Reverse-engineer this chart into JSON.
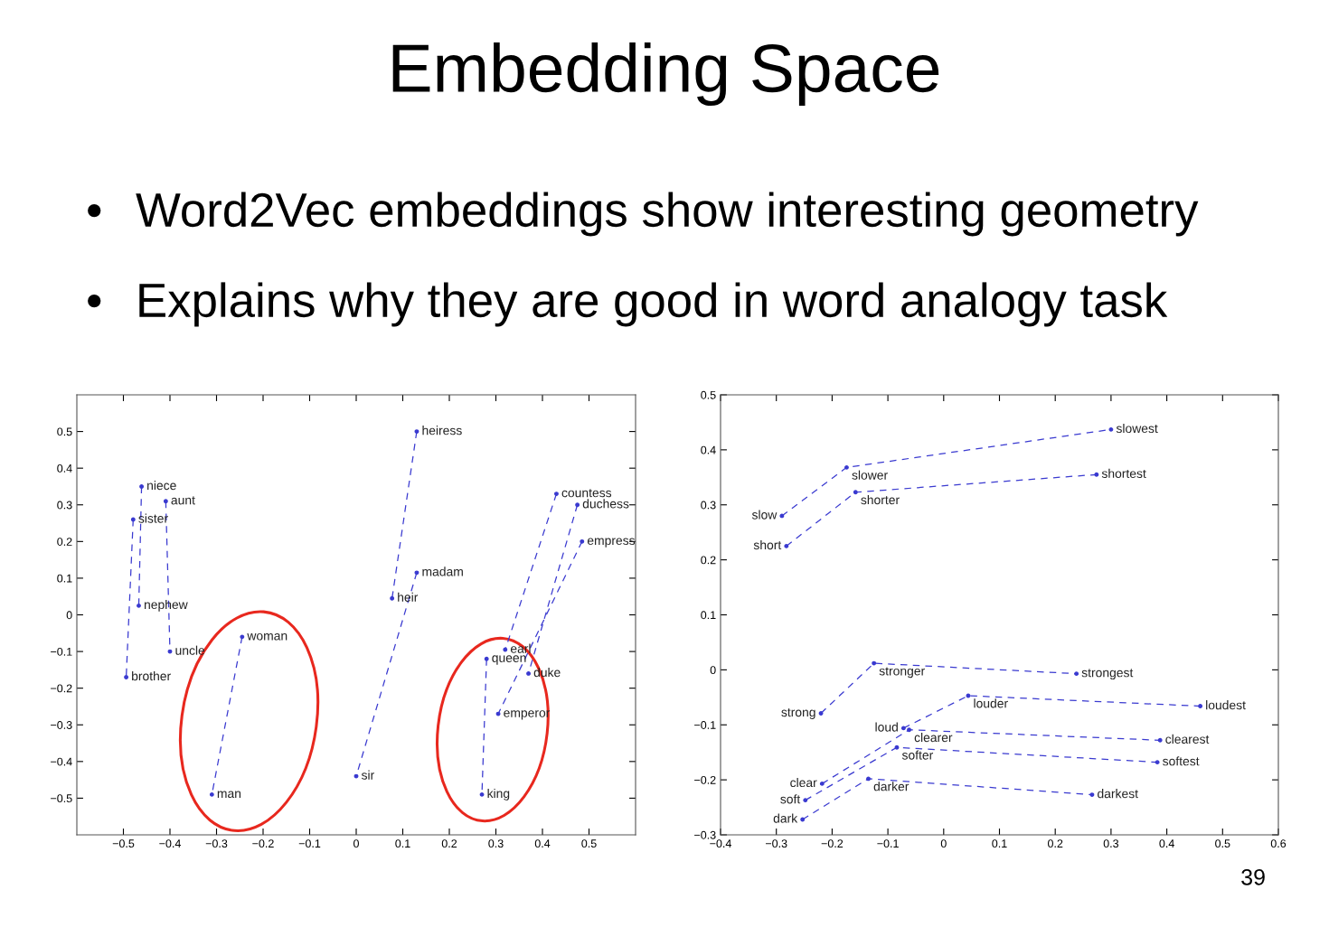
{
  "chart_data": [
    {
      "type": "line",
      "title": "Embedding Space",
      "marker": "circle",
      "line_style": "dashed",
      "grid": false,
      "annotations": [
        "• Word2Vec embeddings show interesting geometry",
        "• Explains why they are good in word analogy task"
      ],
      "xlim": [
        -0.6,
        0.6
      ],
      "ylim": [
        -0.6,
        0.6
      ],
      "xticks": [
        {
          "value": -0.5,
          "label": "−0.5"
        },
        {
          "value": -0.4,
          "label": "−0.4"
        },
        {
          "value": -0.3,
          "label": "−0.3"
        },
        {
          "value": -0.2,
          "label": "−0.2"
        },
        {
          "value": -0.1,
          "label": "−0.1"
        },
        0,
        0.1,
        0.2,
        0.3,
        0.4,
        0.5
      ],
      "yticks": [
        {
          "value": -0.5,
          "label": "−0.5"
        },
        {
          "value": -0.4,
          "label": "−0.4"
        },
        {
          "value": -0.3,
          "label": "−0.3"
        },
        {
          "value": -0.2,
          "label": "−0.2"
        },
        {
          "value": -0.1,
          "label": "−0.1"
        },
        0,
        0.1,
        0.2,
        0.3,
        0.4,
        0.5
      ],
      "series": [
        {
          "color": "#3a3ad0",
          "x": [
            -0.461,
            -0.467
          ],
          "values": [
            0.35,
            0.025
          ],
          "value_labels": [
            "niece",
            "nephew"
          ]
        },
        {
          "color": "#3a3ad0",
          "x": [
            -0.409,
            -0.4
          ],
          "values": [
            0.31,
            -0.1
          ],
          "value_labels": [
            "aunt",
            "uncle"
          ]
        },
        {
          "color": "#3a3ad0",
          "x": [
            -0.479,
            -0.494
          ],
          "values": [
            0.26,
            -0.17
          ],
          "value_labels": [
            "sister",
            "brother"
          ]
        },
        {
          "color": "#3a3ad0",
          "x": [
            -0.245,
            -0.31
          ],
          "values": [
            -0.06,
            -0.49
          ],
          "value_labels": [
            "woman",
            "man"
          ]
        },
        {
          "color": "#3a3ad0",
          "x": [
            0.13,
            0.077
          ],
          "values": [
            0.5,
            0.045
          ],
          "value_labels": [
            "heiress",
            "heir"
          ]
        },
        {
          "color": "#3a3ad0",
          "x": [
            0.13,
            0.0
          ],
          "values": [
            0.115,
            -0.44
          ],
          "value_labels": [
            "madam",
            "sir"
          ]
        },
        {
          "color": "#3a3ad0",
          "x": [
            0.43,
            0.32
          ],
          "values": [
            0.33,
            -0.095
          ],
          "value_labels": [
            "countess",
            "earl"
          ]
        },
        {
          "color": "#3a3ad0",
          "x": [
            0.475,
            0.37
          ],
          "values": [
            0.3,
            -0.16
          ],
          "value_labels": [
            "duchess",
            "duke"
          ]
        },
        {
          "color": "#3a3ad0",
          "x": [
            0.485,
            0.305
          ],
          "values": [
            0.2,
            -0.27
          ],
          "value_labels": [
            "empress",
            "emperor"
          ]
        },
        {
          "color": "#3a3ad0",
          "x": [
            0.28,
            0.27
          ],
          "values": [
            -0.12,
            -0.49
          ],
          "value_labels": [
            "queen",
            "king"
          ]
        }
      ]
    },
    {
      "type": "line",
      "marker": "circle",
      "line_style": "dashed",
      "grid": false,
      "annotations": [
        "39"
      ],
      "xlim": [
        -0.4,
        0.6
      ],
      "ylim": [
        -0.3,
        0.5
      ],
      "xticks": [
        {
          "value": -0.4,
          "label": "−0.4"
        },
        {
          "value": -0.3,
          "label": "−0.3"
        },
        {
          "value": -0.2,
          "label": "−0.2"
        },
        {
          "value": -0.1,
          "label": "−0.1"
        },
        0,
        0.1,
        0.2,
        0.3,
        0.4,
        0.5,
        0.6
      ],
      "yticks": [
        {
          "value": -0.3,
          "label": "−0.3"
        },
        {
          "value": -0.2,
          "label": "−0.2"
        },
        {
          "value": -0.1,
          "label": "−0.1"
        },
        0,
        0.1,
        0.2,
        0.3,
        0.4,
        0.5
      ],
      "series": [
        {
          "color": "#3a3ad0",
          "x": [
            -0.29,
            -0.174,
            0.3
          ],
          "values": [
            0.28,
            0.368,
            0.437
          ],
          "value_labels": [
            "slow",
            "slower",
            "slowest"
          ]
        },
        {
          "color": "#3a3ad0",
          "x": [
            -0.282,
            -0.158,
            0.274
          ],
          "values": [
            0.225,
            0.323,
            0.355
          ],
          "value_labels": [
            "short",
            "shorter",
            "shortest"
          ]
        },
        {
          "color": "#3a3ad0",
          "x": [
            -0.22,
            -0.125,
            0.238
          ],
          "values": [
            -0.079,
            0.012,
            -0.007
          ],
          "value_labels": [
            "strong",
            "stronger",
            "strongest"
          ]
        },
        {
          "color": "#3a3ad0",
          "x": [
            -0.072,
            0.044,
            0.46
          ],
          "values": [
            -0.106,
            -0.047,
            -0.066
          ],
          "value_labels": [
            "loud",
            "louder",
            "loudest"
          ]
        },
        {
          "color": "#3a3ad0",
          "x": [
            -0.218,
            -0.062,
            0.388
          ],
          "values": [
            -0.207,
            -0.109,
            -0.128
          ],
          "value_labels": [
            "clear",
            "clearer",
            "clearest"
          ]
        },
        {
          "color": "#3a3ad0",
          "x": [
            -0.248,
            -0.084,
            0.383
          ],
          "values": [
            -0.237,
            -0.141,
            -0.168
          ],
          "value_labels": [
            "soft",
            "softer",
            "softest"
          ]
        },
        {
          "color": "#3a3ad0",
          "x": [
            -0.253,
            -0.135,
            0.266
          ],
          "values": [
            -0.272,
            -0.198,
            -0.227
          ],
          "value_labels": [
            "dark",
            "darker",
            "darkest"
          ]
        }
      ]
    }
  ]
}
